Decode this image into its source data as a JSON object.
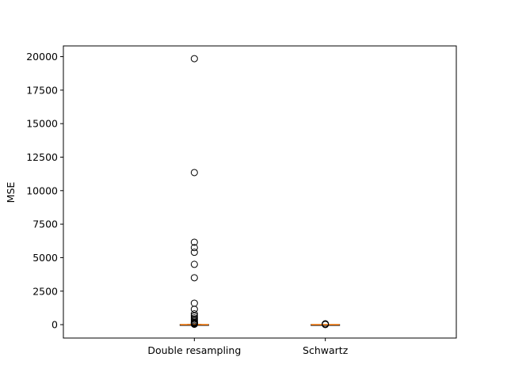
{
  "chart_data": {
    "type": "box",
    "title": "",
    "xlabel": "",
    "ylabel": "MSE",
    "ylim": [
      -1000,
      20800
    ],
    "y_ticks": [
      0,
      2500,
      5000,
      7500,
      10000,
      12500,
      15000,
      17500,
      20000
    ],
    "grid": false,
    "colors": {
      "median": "#ff7f0e",
      "box": "#000000",
      "flier": "#000000"
    },
    "categories": [
      "Double resampling",
      "Schwartz"
    ],
    "boxes": [
      {
        "category": "Double resampling",
        "q1": 0,
        "median": 2,
        "q3": 5,
        "whisker_low": 0,
        "whisker_high": 20,
        "fliers": [
          19850,
          11350,
          6150,
          5750,
          5400,
          4500,
          3500,
          1600,
          1150,
          800,
          650,
          500,
          400,
          300,
          200,
          150,
          100,
          60,
          30
        ]
      },
      {
        "category": "Schwartz",
        "q1": 0,
        "median": 1,
        "q3": 2,
        "whisker_low": 0,
        "whisker_high": 5,
        "fliers": [
          60,
          40,
          20,
          10
        ]
      }
    ]
  }
}
